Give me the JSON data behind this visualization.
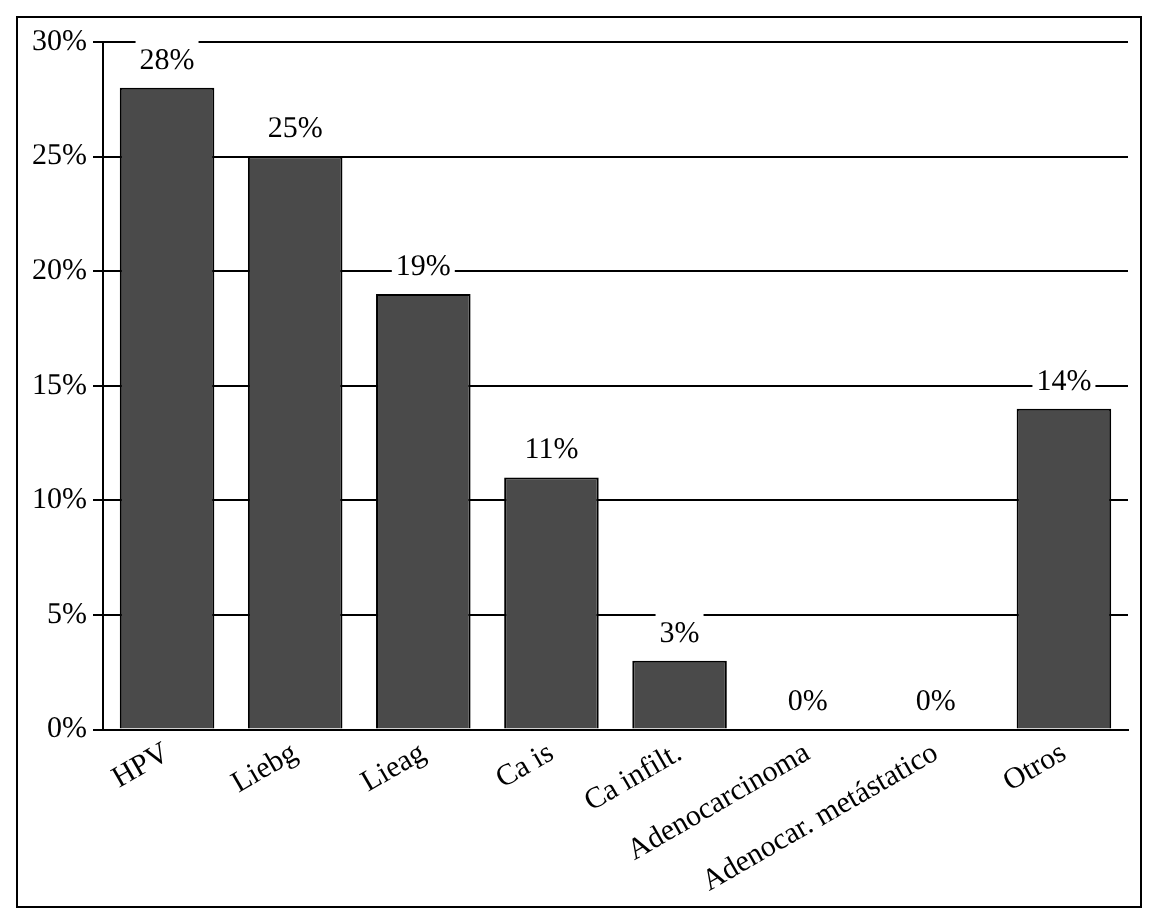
{
  "chart_data": {
    "type": "bar",
    "categories": [
      "HPV",
      "Liebg",
      "Lieag",
      "Ca is",
      "Ca infilt.",
      "Adenocarcinoma",
      "Adenocar. metástatico",
      "Otros"
    ],
    "values": [
      28,
      25,
      19,
      11,
      3,
      0,
      0,
      14
    ],
    "value_labels": [
      "28%",
      "25%",
      "19%",
      "11%",
      "3%",
      "0%",
      "0%",
      "14%"
    ],
    "color": "#4a4a4a",
    "ylim": [
      0,
      30
    ],
    "yticks": [
      {
        "value": 0,
        "label": "0%"
      },
      {
        "value": 5,
        "label": "5%"
      },
      {
        "value": 10,
        "label": "10%"
      },
      {
        "value": 15,
        "label": "15%"
      },
      {
        "value": 20,
        "label": "20%"
      },
      {
        "value": 25,
        "label": "25%"
      },
      {
        "value": 30,
        "label": "30%"
      }
    ],
    "grid": "y",
    "legend": false
  }
}
